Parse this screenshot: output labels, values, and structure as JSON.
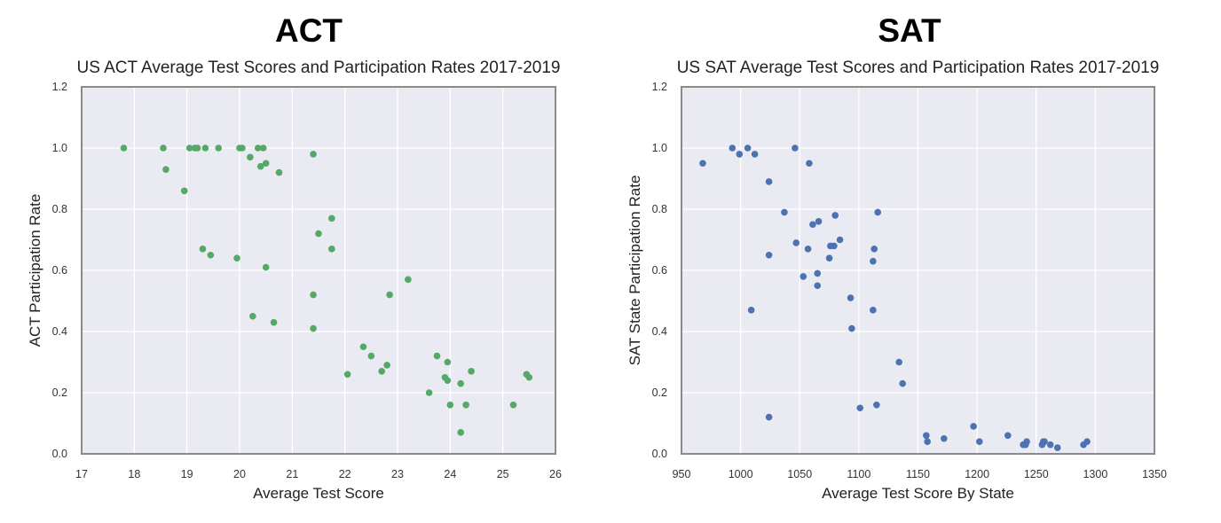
{
  "panels": {
    "act": {
      "heading": "ACT"
    },
    "sat": {
      "heading": "SAT"
    }
  },
  "chart_data": [
    {
      "type": "scatter",
      "title": "US ACT Average Test Scores and Participation Rates 2017-2019",
      "xlabel": "Average Test Score",
      "ylabel": "ACT Participation Rate",
      "xlim": [
        17,
        26
      ],
      "ylim": [
        0.0,
        1.2
      ],
      "xticks": [
        "17",
        "18",
        "19",
        "20",
        "21",
        "22",
        "23",
        "24",
        "25",
        "26"
      ],
      "yticks": [
        "0.0",
        "0.2",
        "0.4",
        "0.6",
        "0.8",
        "1.0",
        "1.2"
      ],
      "grid": true,
      "color": "#55a868",
      "x": [
        17.8,
        18.55,
        18.6,
        18.95,
        19.05,
        19.15,
        19.2,
        19.3,
        19.35,
        19.45,
        19.6,
        19.95,
        20.0,
        20.05,
        20.2,
        20.25,
        20.35,
        20.4,
        20.45,
        20.5,
        20.5,
        20.65,
        20.75,
        21.4,
        21.4,
        21.4,
        21.5,
        21.75,
        21.75,
        22.05,
        22.35,
        22.5,
        22.7,
        22.8,
        22.85,
        23.2,
        23.6,
        23.75,
        23.9,
        23.95,
        23.95,
        24.0,
        24.2,
        24.2,
        24.3,
        24.4,
        25.2,
        25.45,
        25.5
      ],
      "y": [
        1.0,
        1.0,
        0.93,
        0.86,
        1.0,
        1.0,
        1.0,
        0.67,
        1.0,
        0.65,
        1.0,
        0.64,
        1.0,
        1.0,
        0.97,
        0.45,
        1.0,
        0.94,
        1.0,
        0.95,
        0.61,
        0.43,
        0.92,
        0.98,
        0.52,
        0.41,
        0.72,
        0.77,
        0.67,
        0.26,
        0.35,
        0.32,
        0.27,
        0.29,
        0.52,
        0.57,
        0.2,
        0.32,
        0.25,
        0.3,
        0.24,
        0.16,
        0.07,
        0.23,
        0.16,
        0.27,
        0.16,
        0.26,
        0.25
      ]
    },
    {
      "type": "scatter",
      "title": "US SAT Average Test Scores and Participation Rates 2017-2019",
      "xlabel": "Average Test Score By State",
      "ylabel": "SAT State Participation Rate",
      "xlim": [
        950,
        1350
      ],
      "ylim": [
        0.0,
        1.2
      ],
      "xticks": [
        "950",
        "1000",
        "1050",
        "1100",
        "1150",
        "1200",
        "1250",
        "1300",
        "1350"
      ],
      "yticks": [
        "0.0",
        "0.2",
        "0.4",
        "0.6",
        "0.8",
        "1.0",
        "1.2"
      ],
      "grid": true,
      "color": "#4c72b0",
      "x": [
        968,
        993,
        999,
        1006,
        1012,
        1009,
        1024,
        1024,
        1024,
        1037,
        1046,
        1047,
        1053,
        1057,
        1058,
        1061,
        1065,
        1065,
        1066,
        1075,
        1076,
        1079,
        1080,
        1084,
        1093,
        1094,
        1101,
        1112,
        1112,
        1113,
        1115,
        1116,
        1134,
        1137,
        1157,
        1158,
        1172,
        1197,
        1202,
        1226,
        1239,
        1241,
        1242,
        1255,
        1256,
        1257,
        1262,
        1268,
        1290,
        1293
      ],
      "y": [
        0.95,
        1.0,
        0.98,
        1.0,
        0.98,
        0.47,
        0.89,
        0.65,
        0.12,
        0.79,
        1.0,
        0.69,
        0.58,
        0.67,
        0.95,
        0.75,
        0.55,
        0.59,
        0.76,
        0.64,
        0.68,
        0.68,
        0.78,
        0.7,
        0.51,
        0.41,
        0.15,
        0.47,
        0.63,
        0.67,
        0.16,
        0.79,
        0.3,
        0.23,
        0.06,
        0.04,
        0.05,
        0.09,
        0.04,
        0.06,
        0.03,
        0.03,
        0.04,
        0.03,
        0.04,
        0.04,
        0.03,
        0.02,
        0.03,
        0.04
      ]
    }
  ]
}
